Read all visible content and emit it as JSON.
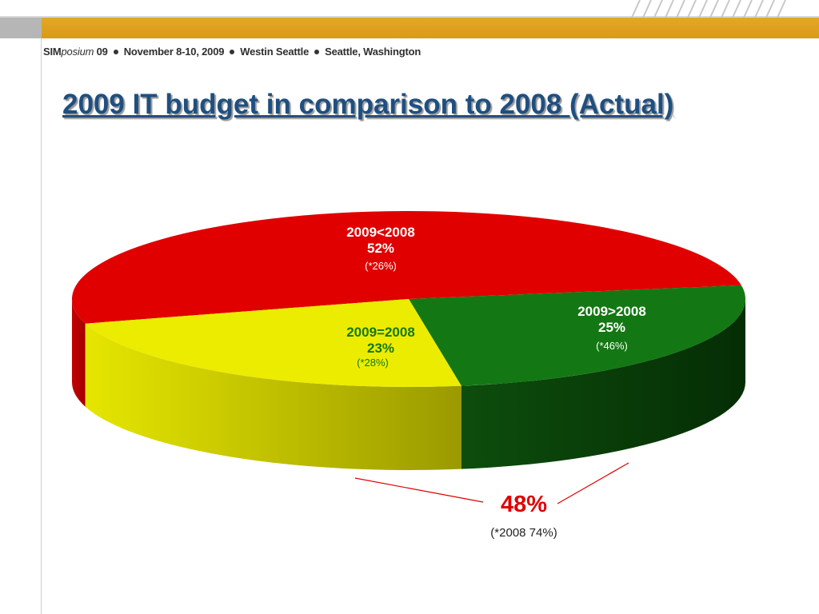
{
  "header": {
    "prefix": "SIM",
    "italic": "posium",
    "year": " 09",
    "dates": "November 8-10, 2009",
    "venue": "Westin Seattle",
    "city": "Seattle, Washington"
  },
  "title": "2009 IT budget in comparison to 2008 (Actual)",
  "chart_data": {
    "type": "pie",
    "style": "3d",
    "title": "2009 IT budget in comparison to 2008 (Actual)",
    "slices": [
      {
        "label": "2009<2008",
        "value": 52,
        "value_text": "52%",
        "previous_text": "(*26%)",
        "color": "#e00000"
      },
      {
        "label": "2009>2008",
        "value": 25,
        "value_text": "25%",
        "previous_text": "(*46%)",
        "color": "#137813"
      },
      {
        "label": "2009=2008",
        "value": 23,
        "value_text": "23%",
        "previous_text": "(*28%)",
        "color": "#ecec00"
      }
    ],
    "annotation": {
      "value_text": "48%",
      "previous_text": "(*2008 74%)",
      "color": "#e00000"
    }
  },
  "colors": {
    "band": "#dea020",
    "title": "#1f4f80",
    "red": "#e00000",
    "green": "#137813",
    "yellow": "#ecec00"
  }
}
